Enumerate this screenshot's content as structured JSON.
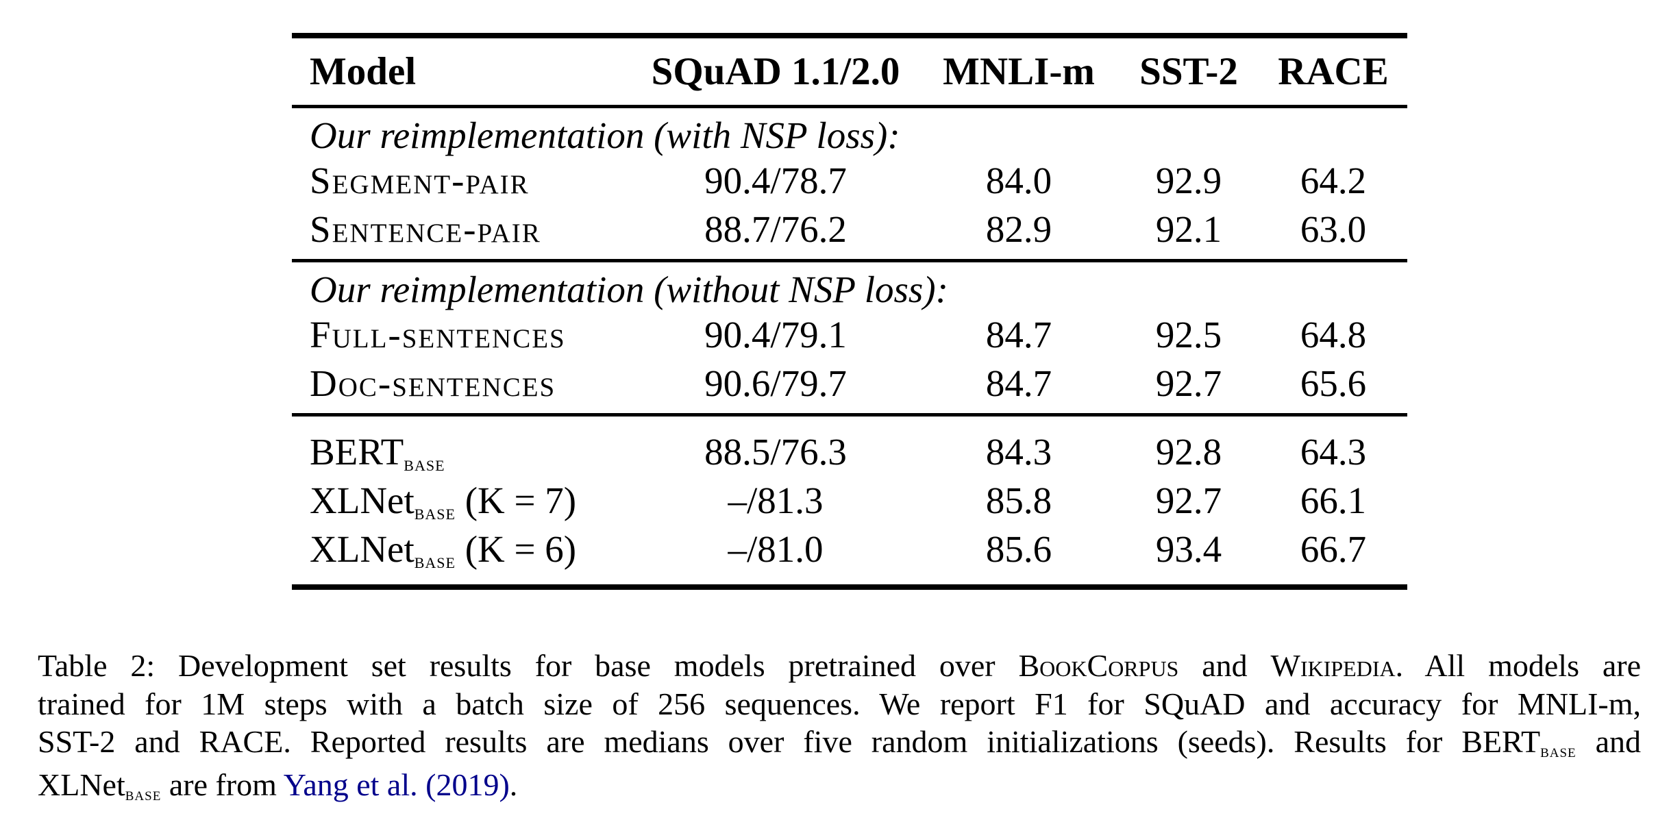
{
  "table": {
    "columns": [
      "Model",
      "SQuAD 1.1/2.0",
      "MNLI-m",
      "SST-2",
      "RACE"
    ],
    "groups": [
      {
        "heading": "Our reimplementation (with NSP loss):",
        "rows": [
          {
            "model": [
              {
                "text": "Segment-pair",
                "style": "sc"
              }
            ],
            "values": [
              "90.4/78.7",
              "84.0",
              "92.9",
              "64.2"
            ]
          },
          {
            "model": [
              {
                "text": "Sentence-pair",
                "style": "sc"
              }
            ],
            "values": [
              "88.7/76.2",
              "82.9",
              "92.1",
              "63.0"
            ]
          }
        ]
      },
      {
        "heading": "Our reimplementation (without NSP loss):",
        "rows": [
          {
            "model": [
              {
                "text": "Full-sentences",
                "style": "sc"
              }
            ],
            "values": [
              "90.4/79.1",
              "84.7",
              "92.5",
              "64.8"
            ]
          },
          {
            "model": [
              {
                "text": "Doc-sentences",
                "style": "sc"
              }
            ],
            "values": [
              "90.6/79.7",
              "84.7",
              "92.7",
              "65.6"
            ]
          }
        ]
      },
      {
        "heading": null,
        "rows": [
          {
            "model": [
              {
                "text": "BERT",
                "style": "plain"
              },
              {
                "text": "base",
                "style": "subsc"
              }
            ],
            "values": [
              "88.5/76.3",
              "84.3",
              "92.8",
              "64.3"
            ]
          },
          {
            "model": [
              {
                "text": "XLNet",
                "style": "plain"
              },
              {
                "text": "base",
                "style": "subsc"
              },
              {
                "text": " (K = 7)",
                "style": "plain"
              }
            ],
            "values": [
              "–/81.3",
              "85.8",
              "92.7",
              "66.1"
            ]
          },
          {
            "model": [
              {
                "text": "XLNet",
                "style": "plain"
              },
              {
                "text": "base",
                "style": "subsc"
              },
              {
                "text": " (K = 6)",
                "style": "plain"
              }
            ],
            "values": [
              "–/81.0",
              "85.6",
              "93.4",
              "66.7"
            ]
          }
        ]
      }
    ]
  },
  "caption": {
    "lines": [
      {
        "last": false,
        "segments": [
          {
            "text": "Table 2: Development set results for base models pretrained over ",
            "style": "plain"
          },
          {
            "text": "BookCorpus",
            "style": "sc"
          },
          {
            "text": " and ",
            "style": "plain"
          },
          {
            "text": "Wikipedia",
            "style": "sc"
          },
          {
            "text": ". All models are",
            "style": "plain"
          }
        ]
      },
      {
        "last": false,
        "segments": [
          {
            "text": "trained for 1M steps with a batch size of 256 sequences. We report F1 for SQuAD and accuracy for MNLI-m,",
            "style": "plain"
          }
        ]
      },
      {
        "last": false,
        "segments": [
          {
            "text": "SST-2 and RACE. Reported results are medians over five random initializations (seeds). Results for BERT",
            "style": "plain"
          },
          {
            "text": "base",
            "style": "subsc"
          },
          {
            "text": " and",
            "style": "plain"
          }
        ]
      },
      {
        "last": true,
        "segments": [
          {
            "text": "XLNet",
            "style": "plain"
          },
          {
            "text": "base",
            "style": "subsc"
          },
          {
            "text": " are from ",
            "style": "plain"
          },
          {
            "text": "Yang et al.",
            "style": "link"
          },
          {
            "text": " ",
            "style": "plain"
          },
          {
            "text": "(2019)",
            "style": "link"
          },
          {
            "text": ".",
            "style": "plain"
          }
        ]
      }
    ]
  },
  "colors": {
    "text": "#000000",
    "background": "#ffffff",
    "link": "#00008B"
  }
}
